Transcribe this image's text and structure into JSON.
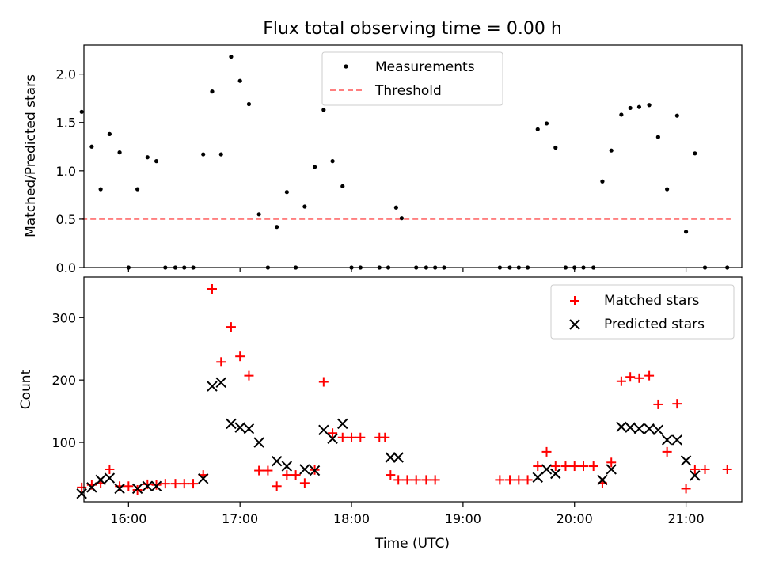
{
  "chart_data": [
    {
      "type": "scatter",
      "title": "Flux total observing time = 0.00 h",
      "xlabel": "",
      "ylabel": "Matched/Predicted stars",
      "xlim": [
        15.6,
        21.5
      ],
      "ylim": [
        0,
        2.3
      ],
      "yticks": [
        0.0,
        0.5,
        1.0,
        1.5,
        2.0
      ],
      "ytick_labels": [
        "0.0",
        "0.5",
        "1.0",
        "1.5",
        "2.0"
      ],
      "xticks": [
        16,
        17,
        18,
        19,
        20,
        21
      ],
      "legend": {
        "placement": "upper-center",
        "entries": [
          "Measurements",
          "Threshold"
        ]
      },
      "threshold": {
        "name": "Threshold",
        "value": 0.5,
        "x_range": [
          15.58,
          21.4
        ],
        "color": "#ff7f7f"
      },
      "series": [
        {
          "name": "Measurements",
          "color": "#000000",
          "points": [
            [
              15.58,
              1.61
            ],
            [
              15.67,
              1.25
            ],
            [
              15.75,
              0.81
            ],
            [
              15.83,
              1.38
            ],
            [
              15.92,
              1.19
            ],
            [
              16.0,
              0.0
            ],
            [
              16.08,
              0.81
            ],
            [
              16.17,
              1.14
            ],
            [
              16.25,
              1.1
            ],
            [
              16.33,
              0.0
            ],
            [
              16.42,
              0.0
            ],
            [
              16.5,
              0.0
            ],
            [
              16.58,
              0.0
            ],
            [
              16.67,
              1.17
            ],
            [
              16.75,
              1.82
            ],
            [
              16.83,
              1.17
            ],
            [
              16.92,
              2.18
            ],
            [
              17.0,
              1.93
            ],
            [
              17.08,
              1.69
            ],
            [
              17.17,
              0.55
            ],
            [
              17.25,
              0.0
            ],
            [
              17.33,
              0.42
            ],
            [
              17.42,
              0.78
            ],
            [
              17.5,
              0.0
            ],
            [
              17.58,
              0.63
            ],
            [
              17.67,
              1.04
            ],
            [
              17.75,
              1.63
            ],
            [
              17.83,
              1.1
            ],
            [
              17.92,
              0.84
            ],
            [
              18.0,
              0.0
            ],
            [
              18.08,
              0.0
            ],
            [
              18.25,
              0.0
            ],
            [
              18.33,
              0.0
            ],
            [
              18.4,
              0.62
            ],
            [
              18.45,
              0.51
            ],
            [
              18.58,
              0.0
            ],
            [
              18.67,
              0.0
            ],
            [
              18.75,
              0.0
            ],
            [
              18.83,
              0.0
            ],
            [
              19.33,
              0.0
            ],
            [
              19.42,
              0.0
            ],
            [
              19.5,
              0.0
            ],
            [
              19.58,
              0.0
            ],
            [
              19.67,
              1.43
            ],
            [
              19.75,
              1.49
            ],
            [
              19.83,
              1.24
            ],
            [
              19.92,
              0.0
            ],
            [
              20.0,
              0.0
            ],
            [
              20.08,
              0.0
            ],
            [
              20.17,
              0.0
            ],
            [
              20.25,
              0.89
            ],
            [
              20.33,
              1.21
            ],
            [
              20.42,
              1.58
            ],
            [
              20.5,
              1.65
            ],
            [
              20.58,
              1.66
            ],
            [
              20.67,
              1.68
            ],
            [
              20.75,
              1.35
            ],
            [
              20.83,
              0.81
            ],
            [
              20.92,
              1.57
            ],
            [
              21.0,
              0.37
            ],
            [
              21.08,
              1.18
            ],
            [
              21.17,
              0.0
            ],
            [
              21.37,
              0.0
            ]
          ]
        }
      ]
    },
    {
      "type": "scatter",
      "title": "",
      "xlabel": "Time (UTC)",
      "ylabel": "Count",
      "xlim": [
        15.6,
        21.5
      ],
      "ylim": [
        5,
        365
      ],
      "yticks": [
        100,
        200,
        300
      ],
      "ytick_labels": [
        "100",
        "200",
        "300"
      ],
      "xticks": [
        16,
        17,
        18,
        19,
        20,
        21
      ],
      "xtick_labels": [
        "16:00",
        "17:00",
        "18:00",
        "19:00",
        "20:00",
        "21:00"
      ],
      "legend": {
        "placement": "top-right",
        "entries": [
          "Matched stars",
          "Predicted stars"
        ]
      },
      "series": [
        {
          "name": "Matched stars",
          "marker": "plus",
          "color": "#ff0000",
          "points": [
            [
              15.58,
              28
            ],
            [
              15.67,
              32
            ],
            [
              15.75,
              35
            ],
            [
              15.83,
              57
            ],
            [
              15.92,
              30
            ],
            [
              16.0,
              30
            ],
            [
              16.08,
              24
            ],
            [
              16.17,
              33
            ],
            [
              16.25,
              32
            ],
            [
              16.33,
              34
            ],
            [
              16.42,
              34
            ],
            [
              16.5,
              34
            ],
            [
              16.58,
              34
            ],
            [
              16.67,
              48
            ],
            [
              16.75,
              346
            ],
            [
              16.83,
              229
            ],
            [
              16.92,
              285
            ],
            [
              17.0,
              238
            ],
            [
              17.08,
              207
            ],
            [
              17.17,
              55
            ],
            [
              17.25,
              55
            ],
            [
              17.33,
              30
            ],
            [
              17.42,
              48
            ],
            [
              17.5,
              48
            ],
            [
              17.58,
              35
            ],
            [
              17.67,
              56
            ],
            [
              17.75,
              197
            ],
            [
              17.83,
              115
            ],
            [
              17.92,
              108
            ],
            [
              18.0,
              108
            ],
            [
              18.08,
              108
            ],
            [
              18.25,
              108
            ],
            [
              18.3,
              108
            ],
            [
              18.35,
              48
            ],
            [
              18.42,
              40
            ],
            [
              18.5,
              40
            ],
            [
              18.58,
              40
            ],
            [
              18.67,
              40
            ],
            [
              18.75,
              40
            ],
            [
              19.33,
              40
            ],
            [
              19.42,
              40
            ],
            [
              19.5,
              40
            ],
            [
              19.58,
              40
            ],
            [
              19.67,
              62
            ],
            [
              19.75,
              85
            ],
            [
              19.83,
              62
            ],
            [
              19.92,
              62
            ],
            [
              20.0,
              62
            ],
            [
              20.08,
              62
            ],
            [
              20.17,
              62
            ],
            [
              20.25,
              35
            ],
            [
              20.33,
              68
            ],
            [
              20.42,
              198
            ],
            [
              20.5,
              205
            ],
            [
              20.58,
              203
            ],
            [
              20.67,
              207
            ],
            [
              20.75,
              161
            ],
            [
              20.83,
              85
            ],
            [
              20.92,
              162
            ],
            [
              21.0,
              26
            ],
            [
              21.08,
              57
            ],
            [
              21.17,
              57
            ],
            [
              21.37,
              57
            ]
          ]
        },
        {
          "name": "Predicted stars",
          "marker": "x",
          "color": "#000000",
          "points": [
            [
              15.58,
              18
            ],
            [
              15.67,
              28
            ],
            [
              15.75,
              40
            ],
            [
              15.83,
              43
            ],
            [
              15.92,
              26
            ],
            [
              16.08,
              26
            ],
            [
              16.17,
              30
            ],
            [
              16.25,
              30
            ],
            [
              16.67,
              42
            ],
            [
              16.75,
              190
            ],
            [
              16.83,
              196
            ],
            [
              16.92,
              130
            ],
            [
              17.0,
              124
            ],
            [
              17.08,
              122
            ],
            [
              17.17,
              100
            ],
            [
              17.33,
              70
            ],
            [
              17.42,
              62
            ],
            [
              17.58,
              57
            ],
            [
              17.67,
              55
            ],
            [
              17.75,
              120
            ],
            [
              17.83,
              106
            ],
            [
              17.92,
              130
            ],
            [
              18.35,
              76
            ],
            [
              18.42,
              76
            ],
            [
              19.67,
              44
            ],
            [
              19.75,
              57
            ],
            [
              19.83,
              50
            ],
            [
              20.25,
              40
            ],
            [
              20.33,
              57
            ],
            [
              20.42,
              125
            ],
            [
              20.5,
              124
            ],
            [
              20.58,
              122
            ],
            [
              20.67,
              122
            ],
            [
              20.75,
              120
            ],
            [
              20.83,
              104
            ],
            [
              20.92,
              104
            ],
            [
              21.0,
              71
            ],
            [
              21.08,
              47
            ]
          ]
        }
      ]
    }
  ]
}
